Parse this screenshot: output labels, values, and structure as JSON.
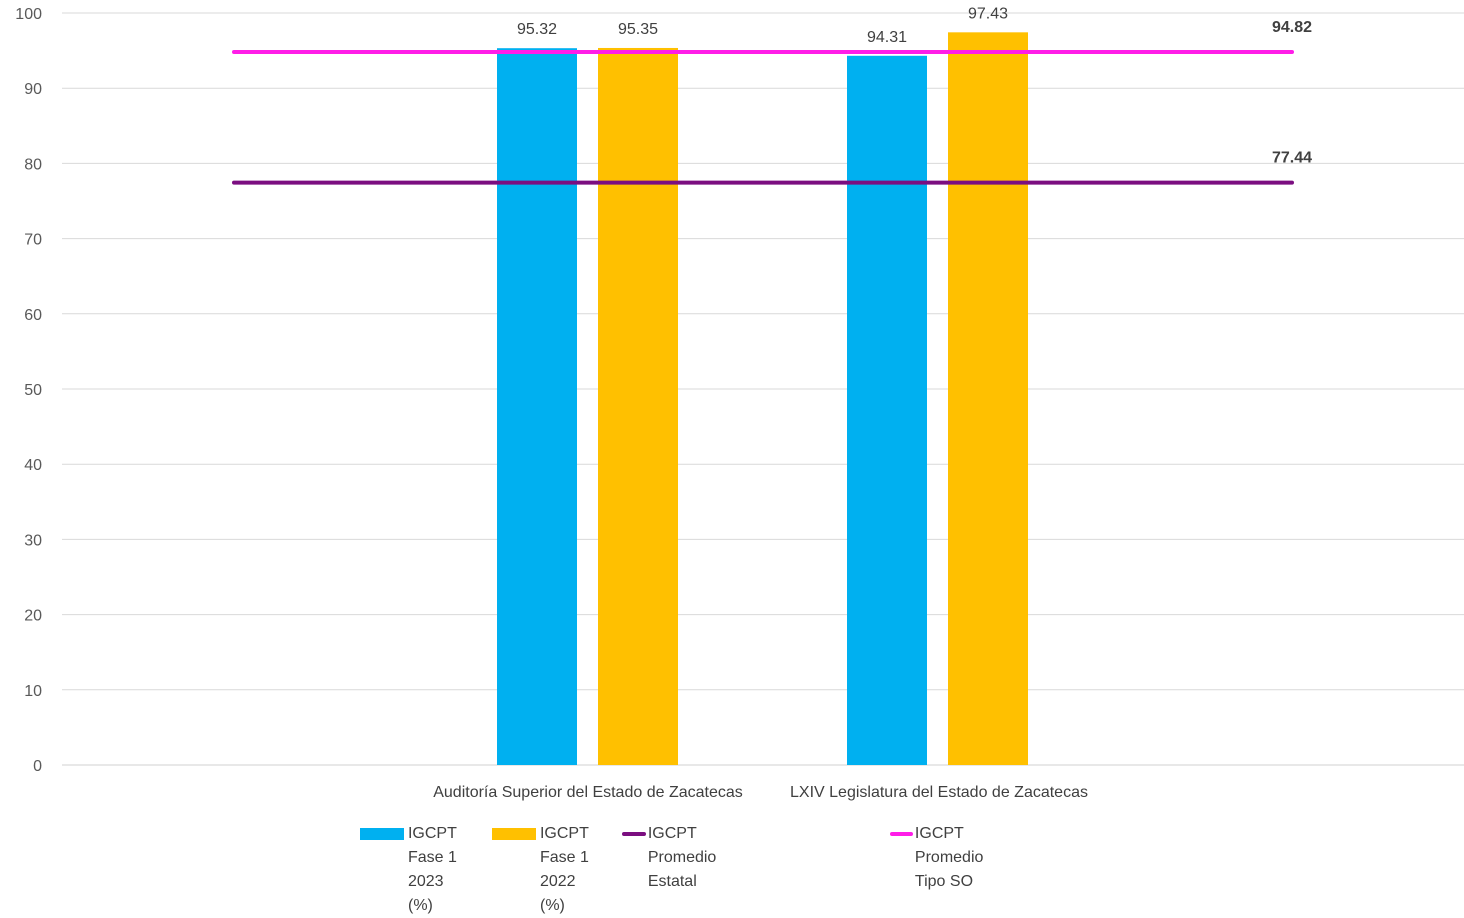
{
  "chart_data": {
    "type": "bar",
    "categories": [
      "Auditoría Superior del Estado de Zacatecas",
      "LXIV Legislatura del Estado de Zacatecas"
    ],
    "series": [
      {
        "name": "IGCPT Fase 1 2023 (%)",
        "kind": "bar",
        "color": "#00b0f0",
        "values": [
          95.32,
          94.31
        ]
      },
      {
        "name": "IGCPT Fase 1 2022 (%)",
        "kind": "bar",
        "color": "#ffc000",
        "values": [
          95.35,
          97.43
        ]
      },
      {
        "name": "IGCPT Promedio Estatal",
        "kind": "line",
        "color": "#7b0e80",
        "value": 77.44
      },
      {
        "name": "IGCPT Promedio Tipo SO",
        "kind": "line",
        "color": "#ff1de8",
        "value": 94.82
      }
    ],
    "y_ticks": [
      0,
      10,
      20,
      30,
      40,
      50,
      60,
      70,
      80,
      90,
      100
    ],
    "ylim": [
      0,
      100
    ],
    "grid": true,
    "legend_position": "bottom",
    "title": "",
    "xlabel": "",
    "ylabel": ""
  },
  "legend": [
    {
      "label": "IGCPT\nFase 1\n2023\n(%)",
      "color": "#00b0f0",
      "kind": "bar"
    },
    {
      "label": "IGCPT\nFase 1\n2022\n(%)",
      "color": "#ffc000",
      "kind": "bar"
    },
    {
      "label": "IGCPT Promedio Estatal",
      "color": "#7b0e80",
      "kind": "line"
    },
    {
      "label": "IGCPT Promedio Tipo SO",
      "color": "#ff1de8",
      "kind": "line"
    }
  ]
}
